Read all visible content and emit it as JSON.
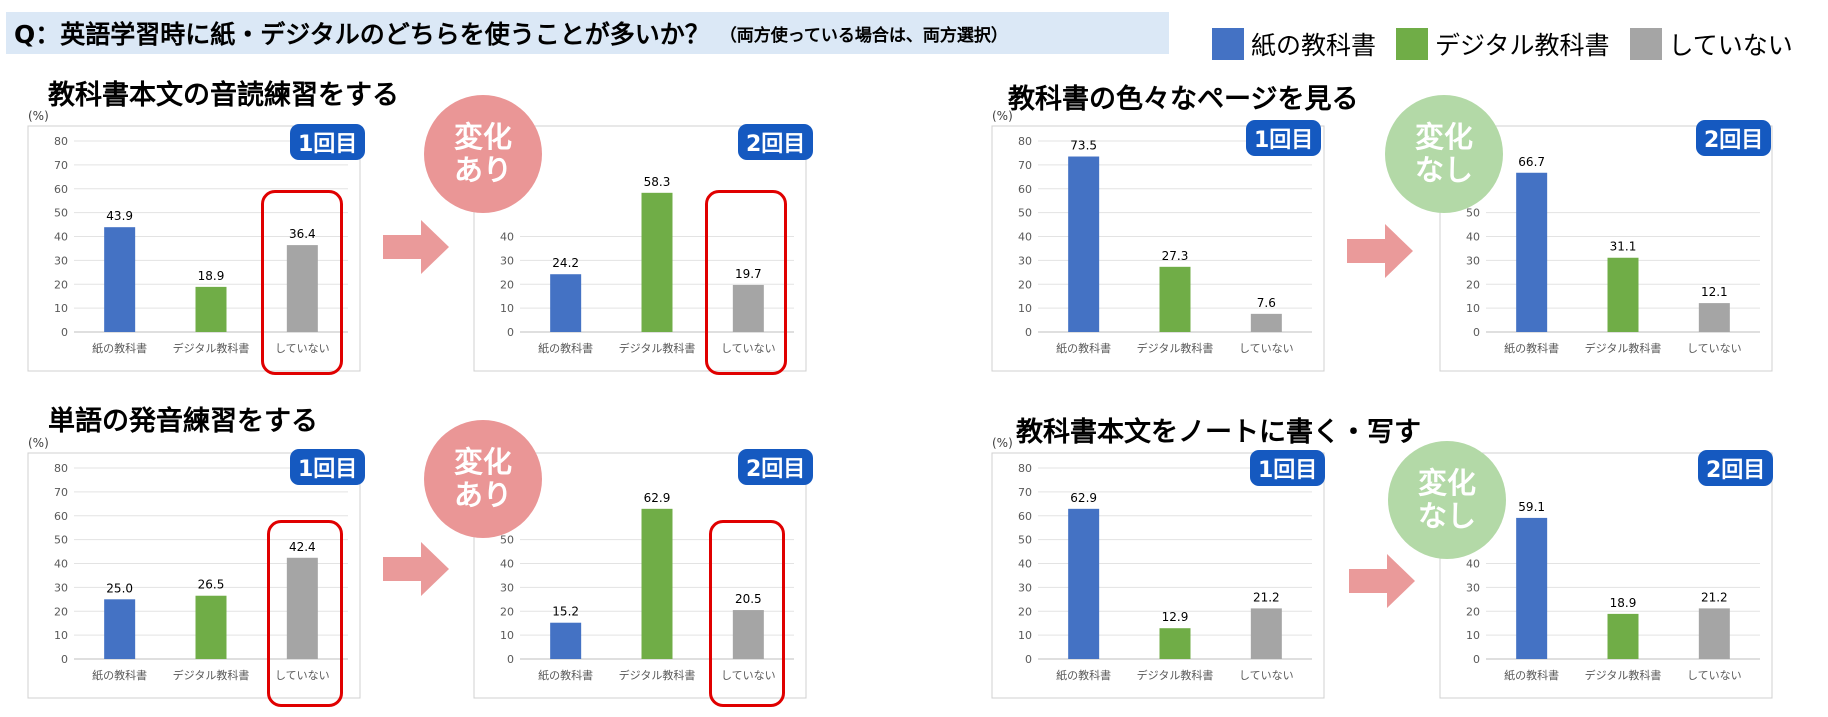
{
  "question": {
    "main": "Q：英語学習時に紙・デジタルのどちらを使うことが多いか？",
    "sub": "（両方使っている場合は、両方選択）"
  },
  "legend": [
    {
      "label": "紙の教科書",
      "color": "#4472c4"
    },
    {
      "label": "デジタル教科書",
      "color": "#70ad47"
    },
    {
      "label": "していない",
      "color": "#a5a5a5"
    }
  ],
  "unit_label": "(%)",
  "sections": [
    {
      "title": "教科書本文の音読練習をする",
      "circle_line1": "変化",
      "circle_line2": "あり",
      "circle_kind": "change"
    },
    {
      "title": "教科書の色々なページを見る",
      "circle_line1": "変化",
      "circle_line2": "なし",
      "circle_kind": "nochange"
    },
    {
      "title": "単語の発音練習をする",
      "circle_line1": "変化",
      "circle_line2": "あり",
      "circle_kind": "change"
    },
    {
      "title": "教科書本文をノートに書く・写す",
      "circle_line1": "変化",
      "circle_line2": "なし",
      "circle_kind": "nochange"
    }
  ],
  "badges": {
    "first": "1回目",
    "second": "2回目"
  },
  "chart_data": [
    {
      "type": "bar",
      "section": "教科書本文の音読練習をする",
      "round": "1回目",
      "categories": [
        "紙の教科書",
        "デジタル教科書",
        "していない"
      ],
      "values": [
        43.9,
        18.9,
        36.4
      ],
      "value_labels": [
        "43.9",
        "18.9",
        "36.4"
      ],
      "ylabel": "(%)",
      "ylim": [
        0,
        80
      ],
      "yticks": [
        0,
        10,
        20,
        30,
        40,
        50,
        60,
        70,
        80
      ]
    },
    {
      "type": "bar",
      "section": "教科書本文の音読練習をする",
      "round": "2回目",
      "categories": [
        "紙の教科書",
        "デジタル教科書",
        "していない"
      ],
      "values": [
        24.2,
        58.3,
        19.7
      ],
      "value_labels": [
        "24.2",
        "58.3",
        "19.7"
      ],
      "ylim": [
        0,
        80
      ],
      "yticks": [
        0,
        10,
        20,
        30,
        40
      ]
    },
    {
      "type": "bar",
      "section": "教科書の色々なページを見る",
      "round": "1回目",
      "categories": [
        "紙の教科書",
        "デジタル教科書",
        "していない"
      ],
      "values": [
        73.5,
        27.3,
        7.6
      ],
      "value_labels": [
        "73.5",
        "27.3",
        "7.6"
      ],
      "ylabel": "(%)",
      "ylim": [
        0,
        80
      ],
      "yticks": [
        0,
        10,
        20,
        30,
        40,
        50,
        60,
        70,
        80
      ]
    },
    {
      "type": "bar",
      "section": "教科書の色々なページを見る",
      "round": "2回目",
      "categories": [
        "紙の教科書",
        "デジタル教科書",
        "していない"
      ],
      "values": [
        66.7,
        31.1,
        12.1
      ],
      "value_labels": [
        "66.7",
        "31.1",
        "12.1"
      ],
      "ylim": [
        0,
        80
      ],
      "yticks": [
        0,
        10,
        20,
        30,
        40,
        50
      ]
    },
    {
      "type": "bar",
      "section": "単語の発音練習をする",
      "round": "1回目",
      "categories": [
        "紙の教科書",
        "デジタル教科書",
        "していない"
      ],
      "values": [
        25.0,
        26.5,
        42.4
      ],
      "value_labels": [
        "25.0",
        "26.5",
        "42.4"
      ],
      "ylabel": "(%)",
      "ylim": [
        0,
        80
      ],
      "yticks": [
        0,
        10,
        20,
        30,
        40,
        50,
        60,
        70,
        80
      ]
    },
    {
      "type": "bar",
      "section": "単語の発音練習をする",
      "round": "2回目",
      "categories": [
        "紙の教科書",
        "デジタル教科書",
        "していない"
      ],
      "values": [
        15.2,
        62.9,
        20.5
      ],
      "value_labels": [
        "15.2",
        "62.9",
        "20.5"
      ],
      "ylim": [
        0,
        80
      ],
      "yticks": [
        0,
        10,
        20,
        30,
        40,
        50
      ]
    },
    {
      "type": "bar",
      "section": "教科書本文をノートに書く・写す",
      "round": "1回目",
      "categories": [
        "紙の教科書",
        "デジタル教科書",
        "していない"
      ],
      "values": [
        62.9,
        12.9,
        21.2
      ],
      "value_labels": [
        "62.9",
        "12.9",
        "21.2"
      ],
      "ylabel": "(%)",
      "ylim": [
        0,
        80
      ],
      "yticks": [
        0,
        10,
        20,
        30,
        40,
        50,
        60,
        70,
        80
      ]
    },
    {
      "type": "bar",
      "section": "教科書本文をノートに書く・写す",
      "round": "2回目",
      "categories": [
        "紙の教科書",
        "デジタル教科書",
        "していない"
      ],
      "values": [
        59.1,
        18.9,
        21.2
      ],
      "value_labels": [
        "59.1",
        "18.9",
        "21.2"
      ],
      "ylim": [
        0,
        80
      ],
      "yticks": [
        0,
        10,
        20,
        30,
        40
      ]
    }
  ]
}
